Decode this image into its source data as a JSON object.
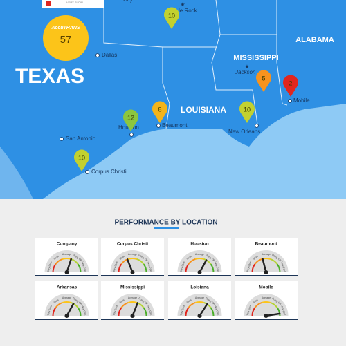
{
  "legend": {
    "label": "VERY SLOW",
    "color": "#e0261f"
  },
  "map": {
    "states": [
      "TEXAS",
      "LOUISIANA",
      "MISSISSIPPI",
      "ALABAMA"
    ],
    "cities": [
      "City",
      "le Rock",
      "Dallas",
      "Jackson",
      "Houston",
      "Beaumont",
      "New Orleans",
      "Mobile",
      "San Antonio",
      "Corpus Christi"
    ],
    "badge": {
      "brand": "AccuTRANS",
      "value": 57,
      "color": "#fcc419"
    },
    "pins": [
      {
        "value": 10,
        "color": "#c2d12f"
      },
      {
        "value": 12,
        "color": "#8cc63f"
      },
      {
        "value": 8,
        "color": "#f4b41a"
      },
      {
        "value": 10,
        "color": "#c2d12f"
      },
      {
        "value": 5,
        "color": "#f7931e"
      },
      {
        "value": 2,
        "color": "#e0261f"
      },
      {
        "value": 10,
        "color": "#c2d12f"
      }
    ]
  },
  "section": {
    "title": "PERFORMANCE BY LOCATION",
    "gauge_labels": [
      "Very Slow",
      "Slow",
      "Average",
      "Doing OK",
      "Very Fast"
    ],
    "gauge_colors": [
      "#e0261f",
      "#f7931e",
      "#fcc419",
      "#b5d334",
      "#4caf2a"
    ],
    "cards": [
      {
        "name": "Company",
        "needle": 60
      },
      {
        "name": "Corpus Christi",
        "needle": 38
      },
      {
        "name": "Houston",
        "needle": 66
      },
      {
        "name": "Beaumont",
        "needle": 42
      },
      {
        "name": "Arkansas",
        "needle": 66
      },
      {
        "name": "Mississippi",
        "needle": 62
      },
      {
        "name": "Loisiana",
        "needle": 68
      },
      {
        "name": "Mobile",
        "needle": 95
      }
    ]
  }
}
